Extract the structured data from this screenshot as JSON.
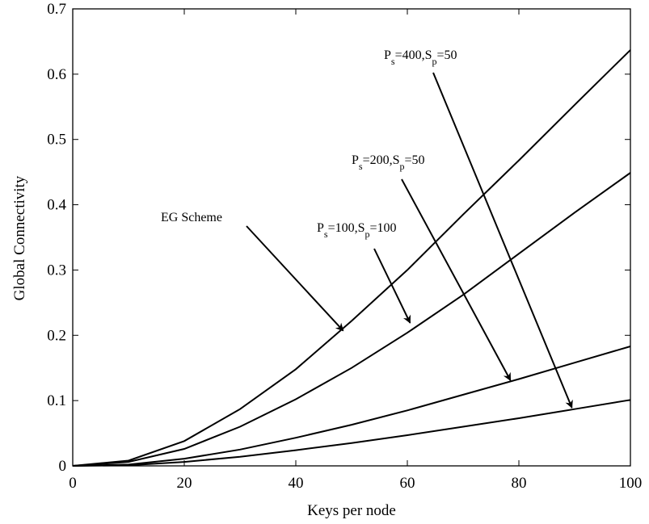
{
  "chart_data": {
    "type": "line",
    "title": "",
    "xlabel": "Keys per node",
    "ylabel": "Global Connectivity",
    "xlim": [
      0,
      100
    ],
    "ylim": [
      0,
      0.7
    ],
    "xticks": [
      0,
      20,
      40,
      60,
      80,
      100
    ],
    "yticks": [
      0,
      0.1,
      0.2,
      0.3,
      0.4,
      0.5,
      0.6,
      0.7
    ],
    "x_tick_labels": [
      "0",
      "20",
      "40",
      "60",
      "80",
      "100"
    ],
    "y_tick_labels": [
      "0",
      "0.1",
      "0.2",
      "0.3",
      "0.4",
      "0.5",
      "0.6",
      "0.7"
    ],
    "grid": false,
    "legend": "none",
    "line_color": "#000000",
    "series": [
      {
        "x": [
          0,
          10,
          20,
          30,
          40,
          50,
          60,
          70,
          80,
          90,
          100
        ],
        "y": [
          0,
          0.008,
          0.038,
          0.087,
          0.148,
          0.222,
          0.3,
          0.385,
          0.468,
          0.553,
          0.637
        ]
      },
      {
        "x": [
          0,
          10,
          20,
          30,
          40,
          50,
          60,
          70,
          80,
          90,
          100
        ],
        "y": [
          0,
          0.006,
          0.026,
          0.06,
          0.102,
          0.15,
          0.204,
          0.262,
          0.325,
          0.388,
          0.449
        ]
      },
      {
        "x": [
          0,
          10,
          20,
          30,
          40,
          50,
          60,
          70,
          80,
          90,
          100
        ],
        "y": [
          0,
          0.002,
          0.011,
          0.025,
          0.043,
          0.063,
          0.085,
          0.109,
          0.133,
          0.158,
          0.183
        ]
      },
      {
        "x": [
          0,
          10,
          20,
          30,
          40,
          50,
          60,
          70,
          80,
          90,
          100
        ],
        "y": [
          0,
          0.001,
          0.006,
          0.014,
          0.024,
          0.035,
          0.047,
          0.06,
          0.073,
          0.087,
          0.101
        ]
      }
    ],
    "annotations": [
      {
        "main": "EG Scheme",
        "arrow_to": [
          48.5,
          0.207
        ]
      },
      {
        "p": "P",
        "p_sub": "s",
        "p_val": "=100,",
        "s": "S",
        "s_sub": "p",
        "s_val": "=100",
        "arrow_to": [
          60.5,
          0.219
        ]
      },
      {
        "p": "P",
        "p_sub": "s",
        "p_val": "=200,",
        "s": "S",
        "s_sub": "p",
        "s_val": "=50",
        "arrow_to": [
          78.5,
          0.131
        ]
      },
      {
        "p": "P",
        "p_sub": "s",
        "p_val": "=400,",
        "s": "S",
        "s_sub": "p",
        "s_val": "=50",
        "arrow_to": [
          89.5,
          0.089
        ]
      }
    ]
  }
}
